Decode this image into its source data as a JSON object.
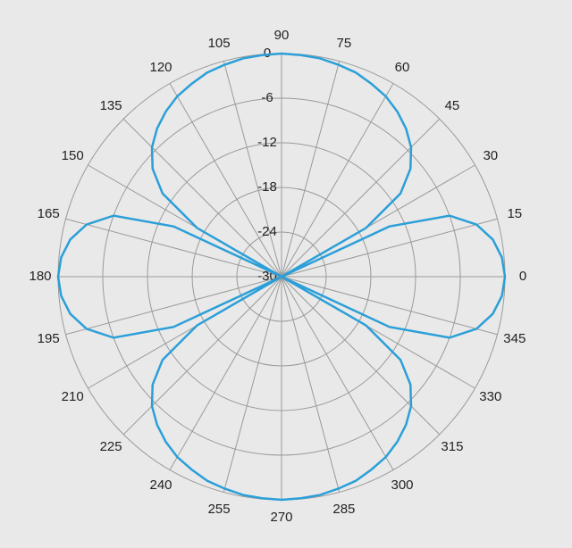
{
  "chart_data": {
    "type": "polar",
    "x": [
      0,
      5,
      10,
      15,
      20,
      25,
      27,
      30,
      35,
      40,
      45,
      50,
      55,
      60,
      65,
      70,
      75,
      80,
      85,
      90,
      95,
      100,
      105,
      110,
      115,
      120,
      125,
      130,
      135,
      140,
      145,
      150,
      153,
      155,
      160,
      165,
      170,
      175,
      180,
      185,
      190,
      195,
      200,
      205,
      207,
      210,
      215,
      220,
      225,
      230,
      235,
      240,
      245,
      250,
      255,
      260,
      265,
      270,
      275,
      280,
      285,
      290,
      295,
      300,
      305,
      310,
      315,
      320,
      325,
      330,
      333,
      335,
      340,
      345,
      350,
      355
    ],
    "series": [
      {
        "color": "#2b9fd8",
        "values": [
          0,
          -0.3,
          -1.2,
          -2.9,
          -6.0,
          -14.0,
          -30,
          -16.9,
          -10.5,
          -7.4,
          -5.4,
          -4.0,
          -2.9,
          -2.0,
          -1.4,
          -0.8,
          -0.5,
          -0.2,
          -0.1,
          0,
          -0.1,
          -0.2,
          -0.5,
          -0.8,
          -1.4,
          -2.0,
          -2.9,
          -4.0,
          -5.4,
          -7.4,
          -10.5,
          -16.9,
          -30,
          -14.0,
          -6.0,
          -2.9,
          -1.2,
          -0.3,
          0,
          -0.3,
          -1.2,
          -2.9,
          -6.0,
          -14.0,
          -30,
          -16.9,
          -10.5,
          -7.4,
          -5.4,
          -4.0,
          -2.9,
          -2.0,
          -1.4,
          -0.8,
          -0.5,
          -0.2,
          -0.1,
          0,
          -0.1,
          -0.2,
          -0.5,
          -0.8,
          -1.4,
          -2.0,
          -2.9,
          -4.0,
          -5.4,
          -7.4,
          -10.5,
          -16.9,
          -30,
          -14.0,
          -6.0,
          -2.9,
          -1.2,
          -0.3
        ]
      }
    ],
    "xticks": [
      0,
      15,
      30,
      45,
      60,
      75,
      90,
      105,
      120,
      135,
      150,
      165,
      180,
      195,
      210,
      225,
      240,
      255,
      270,
      285,
      300,
      315,
      330,
      345
    ],
    "ylim": [
      -30,
      0
    ],
    "yticks": [
      -30,
      -24,
      -18,
      -12,
      -6,
      0
    ],
    "grid": true
  }
}
